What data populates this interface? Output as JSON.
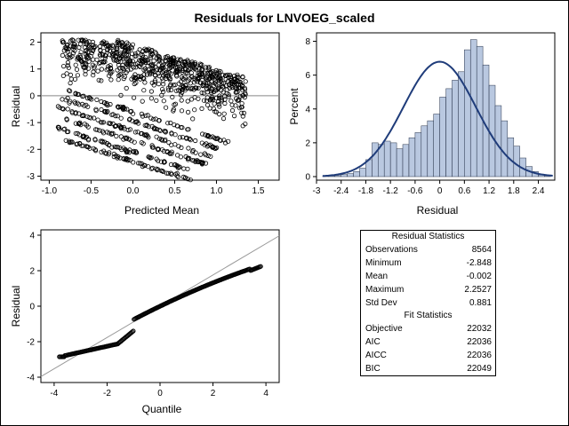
{
  "title": "Residuals for LNVOEG_scaled",
  "chart_data": [
    {
      "type": "scatter",
      "xlabel": "Predicted Mean",
      "ylabel": "Residual",
      "xlim": [
        -1.1,
        1.75
      ],
      "ylim": [
        -3.15,
        2.35
      ],
      "xticks": [
        "-1.0",
        "-0.5",
        "0.0",
        "0.5",
        "1.0",
        "1.5"
      ],
      "yticks": [
        "-3",
        "-2",
        "-1",
        "0",
        "1",
        "2"
      ],
      "reference_line_y": 0,
      "bands": [
        {
          "offset": -0.95,
          "x": [
            -0.85,
            1.1
          ]
        },
        {
          "offset": -1.32,
          "x": [
            -0.9,
            0.95
          ]
        },
        {
          "offset": -1.68,
          "x": [
            -0.8,
            0.9
          ]
        },
        {
          "offset": -2.1,
          "x": [
            -0.9,
            0.7
          ]
        },
        {
          "offset": -2.45,
          "x": [
            -0.8,
            0.7
          ]
        },
        {
          "offset": -0.6,
          "x": [
            -0.8,
            1.2
          ]
        }
      ],
      "cloud": {
        "x": [
          -0.85,
          1.35
        ],
        "residual_range": [
          -1.0,
          2.2
        ]
      },
      "marker": "circle"
    },
    {
      "type": "bar",
      "xlabel": "Residual",
      "ylabel": "Percent",
      "xlim": [
        -3.0,
        2.8
      ],
      "ylim": [
        0,
        8.5
      ],
      "xticks": [
        "-3",
        "-2.4",
        "-1.8",
        "-1.2",
        "-0.6",
        "0",
        "0.6",
        "1.2",
        "1.8",
        "2.4"
      ],
      "yticks": [
        "0",
        "2",
        "4",
        "6",
        "8"
      ],
      "bin_start": -2.85,
      "bin_width": 0.15,
      "values": [
        0.02,
        0.04,
        0.06,
        0.12,
        0.18,
        0.3,
        0.5,
        1.0,
        2.0,
        1.9,
        2.1,
        2.0,
        1.65,
        1.9,
        2.3,
        2.6,
        3.0,
        3.3,
        3.7,
        4.7,
        5.2,
        5.7,
        6.2,
        7.5,
        8.1,
        7.7,
        6.6,
        5.4,
        4.2,
        3.3,
        2.3,
        1.8,
        1.1,
        0.6,
        0.3,
        0.1,
        0.05
      ],
      "fill_color": "#b9c8e0",
      "edge_color": "#27324a",
      "normal_curve": {
        "mean": -0.002,
        "sd": 0.881,
        "color": "#1f3c7a"
      }
    },
    {
      "type": "scatter",
      "xlabel": "Quantile",
      "ylabel": "Residual",
      "xlim": [
        -4.5,
        4.5
      ],
      "ylim": [
        -4.3,
        4.3
      ],
      "xticks": [
        "-4",
        "-2",
        "0",
        "2",
        "4"
      ],
      "yticks": [
        "-4",
        "-2",
        "0",
        "2",
        "4"
      ],
      "reference_line": {
        "intercept": -0.002,
        "slope": 0.881
      },
      "quantile_range": [
        -3.8,
        3.8
      ],
      "marker": "circle"
    }
  ],
  "stats": {
    "residual_header": "Residual Statistics",
    "fit_header": "Fit Statistics",
    "residual_rows": [
      {
        "label": "Observations",
        "value": "8564"
      },
      {
        "label": "Minimum",
        "value": "-2.848"
      },
      {
        "label": "Mean",
        "value": "-0.002"
      },
      {
        "label": "Maximum",
        "value": "2.2527"
      },
      {
        "label": "Std Dev",
        "value": "0.881"
      }
    ],
    "fit_rows": [
      {
        "label": "Objective",
        "value": "22032"
      },
      {
        "label": "AIC",
        "value": "22036"
      },
      {
        "label": "AICC",
        "value": "22036"
      },
      {
        "label": "BIC",
        "value": "22049"
      }
    ]
  }
}
